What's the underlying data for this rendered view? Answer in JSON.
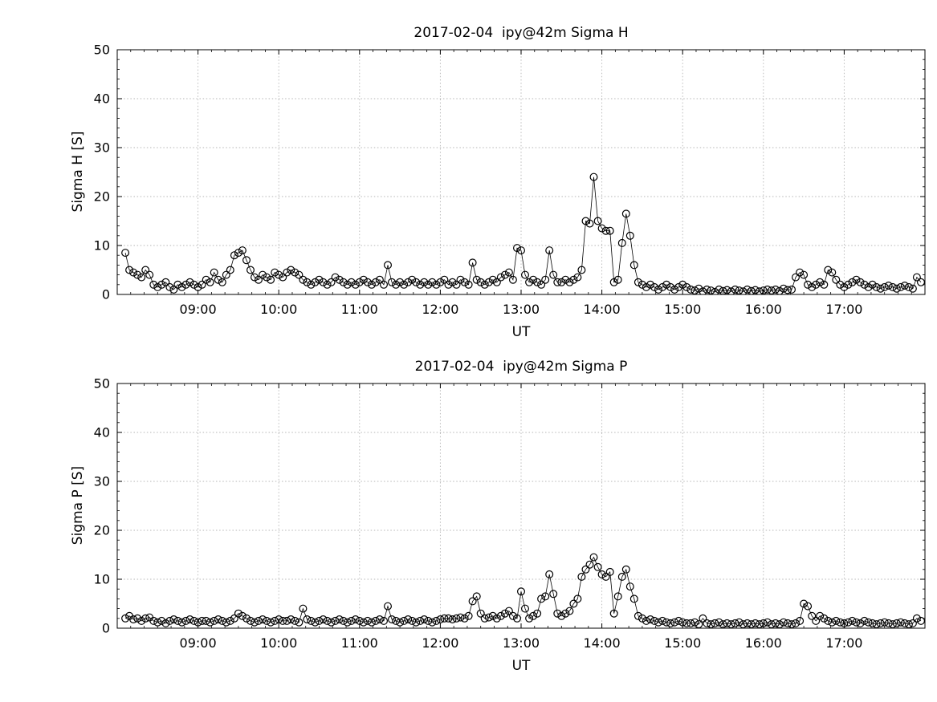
{
  "page": {
    "background": "#ffffff",
    "axes_color": "#000000",
    "grid_color": "#b5b5b5"
  },
  "chart_data": [
    {
      "type": "line",
      "title": "2017-02-04  ipy@42m Sigma H",
      "xlabel": "UT",
      "ylabel": "Sigma H [S]",
      "xlim": [
        8,
        18
      ],
      "ylim": [
        0,
        50
      ],
      "xticks": [
        9,
        10,
        11,
        12,
        13,
        14,
        15,
        16,
        17
      ],
      "xtick_labels": [
        "09:00",
        "10:00",
        "11:00",
        "12:00",
        "13:00",
        "14:00",
        "15:00",
        "16:00",
        "17:00"
      ],
      "yticks": [
        0,
        10,
        20,
        30,
        40,
        50
      ],
      "ytick_labels": [
        "0",
        "10",
        "20",
        "30",
        "40",
        "50"
      ],
      "grid": true,
      "legend": "none",
      "marker": "open-circle",
      "color": "#000000",
      "x_start_hours": 8.1,
      "x_step_hours": 0.05,
      "values": [
        8.5,
        5,
        4.5,
        4,
        3.5,
        5,
        4,
        2,
        1.5,
        2,
        2.5,
        1.5,
        1,
        2,
        1.5,
        2,
        2.5,
        2,
        1.5,
        2,
        3,
        2.5,
        4.5,
        3,
        2.5,
        4,
        5,
        8,
        8.5,
        9,
        7,
        5,
        3.5,
        3,
        4,
        3.5,
        3,
        4.5,
        4,
        3.5,
        4.5,
        5,
        4.5,
        4,
        3,
        2.5,
        2,
        2.5,
        3,
        2.5,
        2,
        2.5,
        3.5,
        3,
        2.5,
        2,
        2.5,
        2,
        2.5,
        3,
        2.5,
        2,
        2.5,
        3,
        2,
        6,
        2.5,
        2,
        2.5,
        2,
        2.5,
        3,
        2.5,
        2,
        2.5,
        2,
        2.5,
        2,
        2.5,
        3,
        2,
        2.5,
        2,
        3,
        2.5,
        2,
        6.5,
        3,
        2.5,
        2,
        2.5,
        3,
        2.5,
        3.5,
        4,
        4.5,
        3,
        9.5,
        9,
        4,
        2.5,
        3,
        2.5,
        2,
        3,
        9,
        4,
        2.5,
        2.5,
        3,
        2.5,
        3,
        3.5,
        5,
        15,
        14.5,
        24,
        15,
        13.5,
        13,
        13,
        2.5,
        3,
        10.5,
        16.5,
        12,
        6,
        2.5,
        2,
        1.5,
        2,
        1.5,
        1,
        1.5,
        2,
        1.5,
        1,
        1.5,
        2,
        1.5,
        1,
        0.8,
        1.2,
        0.6,
        1,
        0.8,
        0.5,
        1,
        0.7,
        0.9,
        0.6,
        1,
        0.8,
        0.6,
        1,
        0.7,
        0.9,
        0.6,
        0.8,
        1,
        0.8,
        1,
        0.7,
        1.2,
        0.9,
        1,
        3.5,
        4.5,
        4,
        2,
        1.5,
        2,
        2.5,
        2,
        5,
        4.5,
        3,
        2,
        1.5,
        2,
        2.5,
        3,
        2.5,
        2,
        1.5,
        2,
        1.5,
        1.2,
        1.5,
        1.8,
        1.5,
        1.2,
        1.5,
        1.8,
        1.5,
        1.2,
        3.5,
        2.5
      ]
    },
    {
      "type": "line",
      "title": "2017-02-04  ipy@42m Sigma P",
      "xlabel": "UT",
      "ylabel": "Sigma P [S]",
      "xlim": [
        8,
        18
      ],
      "ylim": [
        0,
        50
      ],
      "xticks": [
        9,
        10,
        11,
        12,
        13,
        14,
        15,
        16,
        17
      ],
      "xtick_labels": [
        "09:00",
        "10:00",
        "11:00",
        "12:00",
        "13:00",
        "14:00",
        "15:00",
        "16:00",
        "17:00"
      ],
      "yticks": [
        0,
        10,
        20,
        30,
        40,
        50
      ],
      "ytick_labels": [
        "0",
        "10",
        "20",
        "30",
        "40",
        "50"
      ],
      "grid": true,
      "legend": "none",
      "marker": "open-circle",
      "color": "#000000",
      "x_start_hours": 8.1,
      "x_step_hours": 0.05,
      "values": [
        2,
        2.5,
        1.8,
        2,
        1.5,
        2,
        2.2,
        1.5,
        1.2,
        1.5,
        1,
        1.5,
        1.8,
        1.5,
        1.2,
        1.5,
        1.8,
        1.5,
        1.2,
        1.5,
        1.5,
        1.2,
        1.5,
        1.8,
        1.5,
        1.2,
        1.5,
        2,
        3,
        2.5,
        2,
        1.5,
        1.2,
        1.5,
        1.8,
        1.5,
        1.2,
        1.5,
        1.8,
        1.5,
        1.5,
        1.8,
        1.5,
        1.2,
        4,
        1.8,
        1.5,
        1.2,
        1.5,
        1.8,
        1.5,
        1.2,
        1.5,
        1.8,
        1.5,
        1.2,
        1.5,
        1.8,
        1.5,
        1.2,
        1.5,
        1.2,
        1.5,
        1.8,
        1.5,
        4.5,
        1.8,
        1.5,
        1.2,
        1.5,
        1.8,
        1.5,
        1.2,
        1.5,
        1.8,
        1.5,
        1.2,
        1.5,
        1.8,
        2,
        2,
        1.8,
        2,
        2.2,
        2,
        2.5,
        5.5,
        6.5,
        3,
        2,
        2.2,
        2.5,
        2,
        2.5,
        3,
        3.5,
        2.5,
        2,
        7.5,
        4,
        2,
        2.5,
        3,
        6,
        6.5,
        11,
        7,
        3,
        2.5,
        3,
        3.5,
        5,
        6,
        10.5,
        12,
        13,
        14.5,
        12.5,
        11,
        10.5,
        11.5,
        3,
        6.5,
        10.5,
        12,
        8.5,
        6,
        2.5,
        2,
        1.5,
        1.8,
        1.5,
        1.2,
        1.5,
        1.2,
        1,
        1.2,
        1.5,
        1.2,
        1,
        1,
        1.2,
        0.8,
        2,
        1,
        0.8,
        1,
        1.2,
        0.8,
        1,
        0.8,
        1,
        1.2,
        0.8,
        1,
        0.8,
        1,
        0.8,
        1,
        1.2,
        0.8,
        1,
        0.8,
        1.2,
        1,
        0.8,
        1,
        1.5,
        5,
        4.5,
        2.5,
        1.5,
        2.5,
        2,
        1.5,
        1.2,
        1.5,
        1.2,
        1,
        1.2,
        1.5,
        1.2,
        1,
        1.5,
        1.2,
        1,
        0.8,
        1,
        1.2,
        1,
        0.8,
        1,
        1.2,
        1,
        0.8,
        1,
        2,
        1.5
      ]
    }
  ]
}
